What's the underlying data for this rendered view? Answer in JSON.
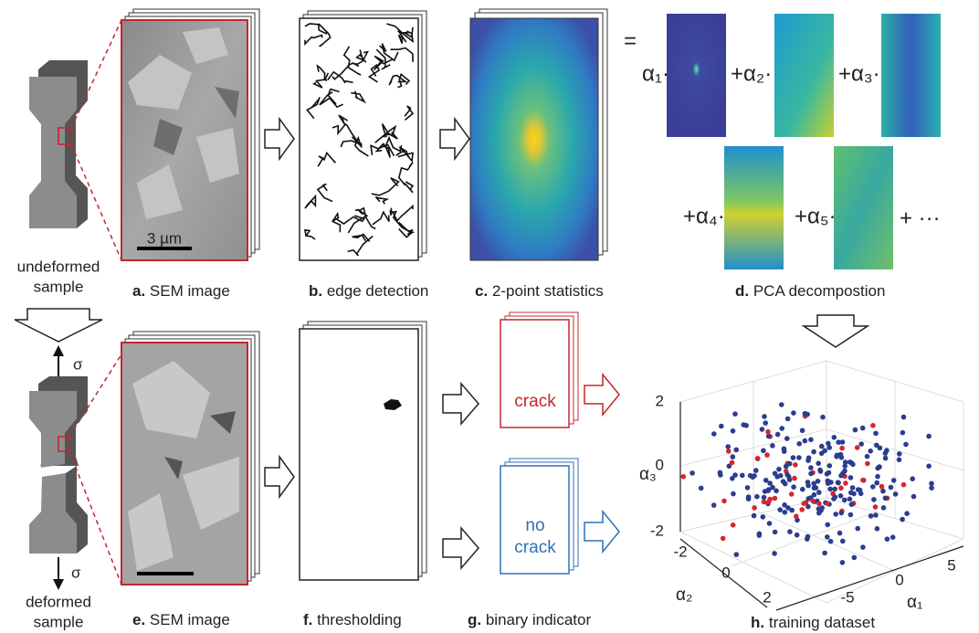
{
  "panels": {
    "a": {
      "letter": "a.",
      "label": "SEM image",
      "scale": "3 µm"
    },
    "b": {
      "letter": "b.",
      "label": "edge detection"
    },
    "c": {
      "letter": "c.",
      "label": "2-point statistics"
    },
    "d": {
      "letter": "d.",
      "label": "PCA decompostion"
    },
    "e": {
      "letter": "e.",
      "label": "SEM image"
    },
    "f": {
      "letter": "f.",
      "label": "thresholding"
    },
    "g": {
      "letter": "g.",
      "label": "binary indicator"
    },
    "h": {
      "letter": "h.",
      "label": "training dataset"
    }
  },
  "samples": {
    "undeformed": [
      "undeformed",
      "sample"
    ],
    "deformed": [
      "deformed",
      "sample"
    ],
    "stress": "σ"
  },
  "equation": {
    "equals": "=",
    "terms": [
      "α₁·",
      "+α₂·",
      "+α₃·",
      "+α₄·",
      "+α₅·"
    ],
    "more": "+ ···"
  },
  "indicators": {
    "crack": "crack",
    "no_crack": [
      "no",
      "crack"
    ]
  },
  "plot": {
    "z_label": "α₃",
    "y_label": "α₂",
    "x_label": "α₁",
    "z_ticks": [
      "2",
      "0",
      "-2"
    ],
    "y_ticks": [
      "-2",
      "0",
      "2"
    ],
    "x_ticks": [
      "-5",
      "0",
      "5"
    ]
  }
}
